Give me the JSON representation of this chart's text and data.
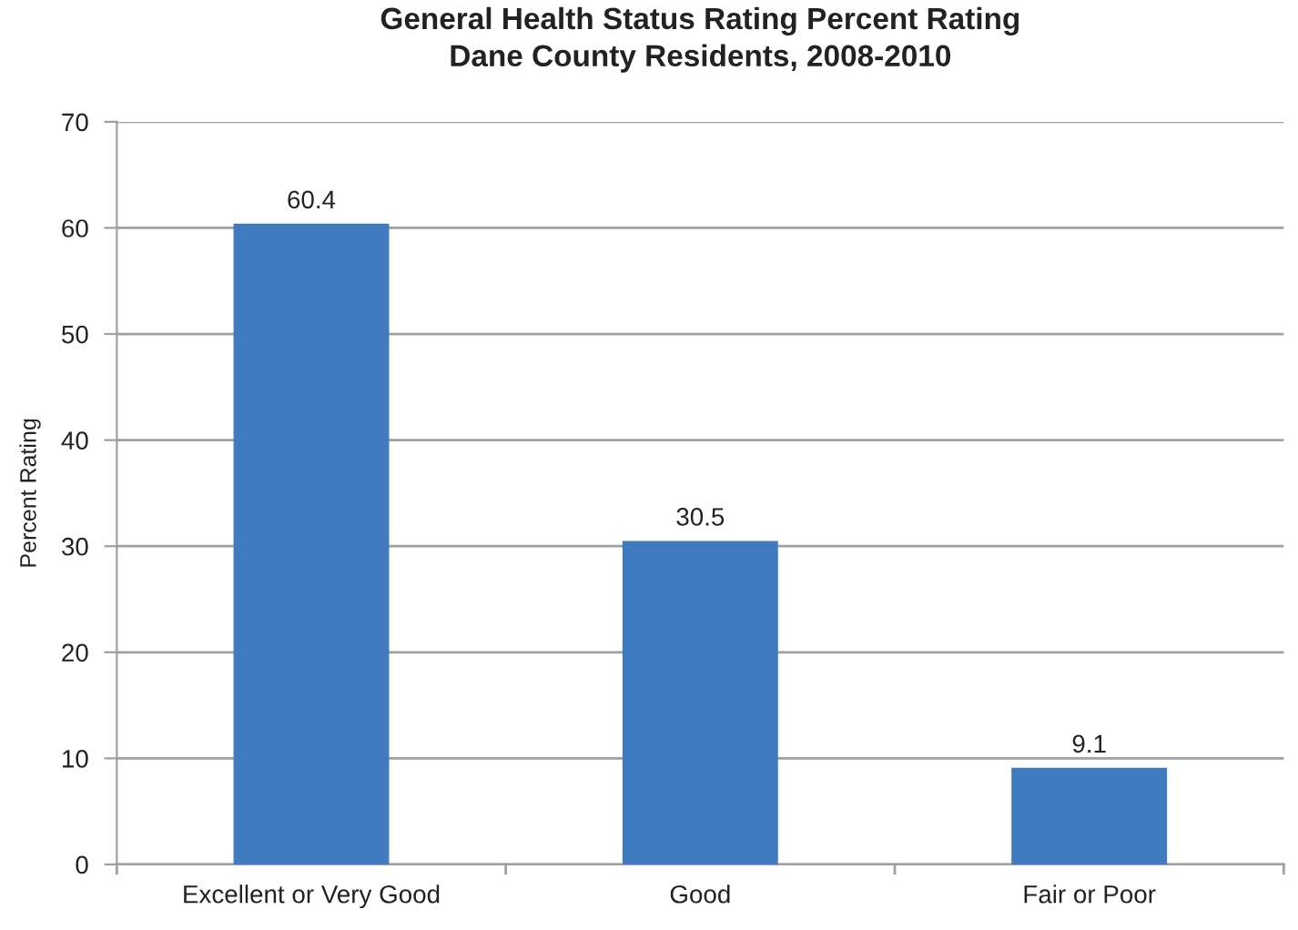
{
  "chart_data": {
    "type": "bar",
    "title": "General Health Status Rating Percent Rating\nDane County Residents, 2008-2010",
    "ylabel": "Percent Rating",
    "categories": [
      "Excellent or Very Good",
      "Good",
      "Fair or Poor"
    ],
    "values": [
      60.4,
      30.5,
      9.1
    ],
    "color": "#3f7bbe",
    "ylim": [
      0,
      70
    ],
    "yticks": [
      0,
      10,
      20,
      30,
      40,
      50,
      60,
      70
    ],
    "grid": "y",
    "data_labels": true,
    "legend": false
  }
}
